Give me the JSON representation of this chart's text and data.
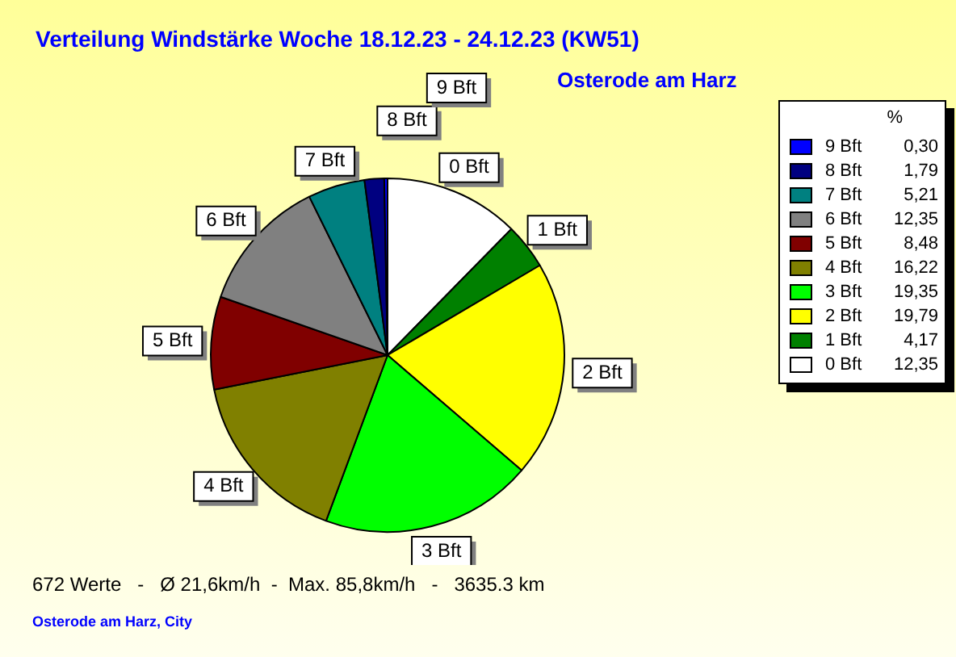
{
  "chart_data": {
    "type": "pie",
    "title": "Verteilung Windstärke  Woche 18.12.23 - 24.12.23 (KW51)",
    "subtitle": "Osterode am Harz",
    "legend_title": "%",
    "legend": "top right",
    "categories": [
      "0 Bft",
      "1 Bft",
      "2 Bft",
      "3 Bft",
      "4 Bft",
      "5 Bft",
      "6 Bft",
      "7 Bft",
      "8 Bft",
      "9 Bft"
    ],
    "values": [
      12.35,
      4.17,
      19.79,
      19.35,
      16.22,
      8.48,
      12.35,
      5.21,
      1.79,
      0.3
    ],
    "value_labels": [
      "12,35",
      "4,17",
      "19,79",
      "19,35",
      "16,22",
      "8,48",
      "12,35",
      "5,21",
      "1,79",
      "0,30"
    ],
    "colors": [
      "#ffffff",
      "#008000",
      "#ffff00",
      "#00ff00",
      "#808000",
      "#800000",
      "#808080",
      "#008080",
      "#000080",
      "#0000ff"
    ],
    "annotations": [
      "672 Werte   -   Ø 21,6km/h  -  Max. 85,8km/h   -   3635.3 km",
      "Osterode am Harz, City"
    ]
  }
}
